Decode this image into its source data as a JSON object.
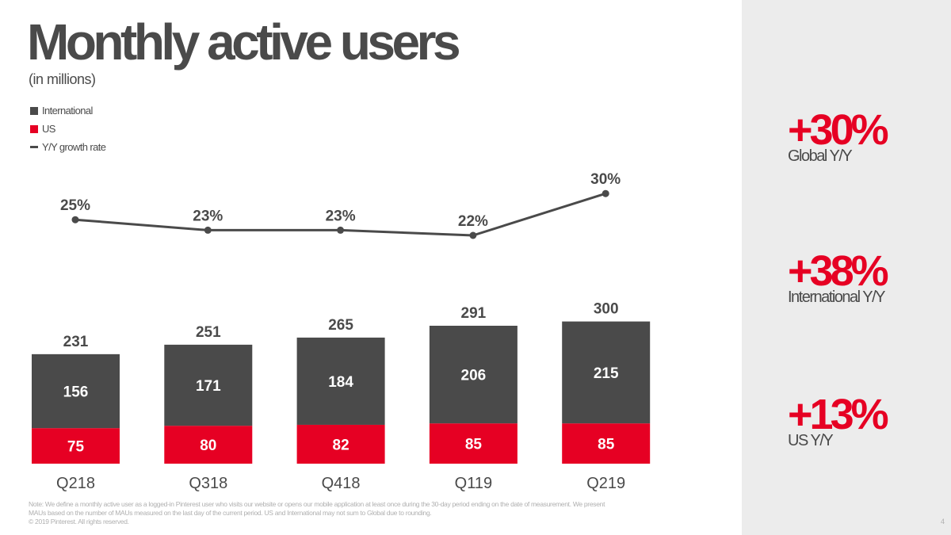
{
  "header": {
    "title": "Monthly active users",
    "subtitle": "(in millions)"
  },
  "legend": [
    {
      "label": "International",
      "color": "#4a4a4a",
      "kind": "square"
    },
    {
      "label": "US",
      "color": "#e60023",
      "kind": "square"
    },
    {
      "label": "Y/Y growth rate",
      "color": "#4a4a4a",
      "kind": "line"
    }
  ],
  "colors": {
    "international": "#4a4a4a",
    "us": "#e60023",
    "growth_line": "#4a4a4a",
    "accent_red": "#e60023",
    "side_panel": "#ececec"
  },
  "chart_data": {
    "type": "bar",
    "stacked": true,
    "categories": [
      "Q218",
      "Q318",
      "Q418",
      "Q119",
      "Q219"
    ],
    "series": [
      {
        "name": "US",
        "values": [
          75,
          80,
          82,
          85,
          85
        ]
      },
      {
        "name": "International",
        "values": [
          156,
          171,
          184,
          206,
          215
        ]
      }
    ],
    "totals": [
      231,
      251,
      265,
      291,
      300
    ],
    "overlay_line": {
      "name": "Y/Y growth rate",
      "values": [
        25,
        23,
        23,
        22,
        30
      ],
      "labels": [
        "25%",
        "23%",
        "23%",
        "22%",
        "30%"
      ]
    },
    "title": "Monthly active users",
    "subtitle": "(in millions)",
    "legend_position": "top-left",
    "grid": false
  },
  "side_stats": [
    {
      "value": "+30%",
      "label": "Global Y/Y"
    },
    {
      "value": "+38%",
      "label": "International Y/Y"
    },
    {
      "value": "+13%",
      "label": "US Y/Y"
    }
  ],
  "footer": {
    "note_lines": [
      "Note: We define a monthly active user as a logged-in Pinterest user who visits our website or opens our mobile application at least once during the 30-day period ending on the date of measurement. We present",
      "MAUs based on the number of MAUs measured on the last day of the current period. US and International may not sum to Global due to rounding.",
      "© 2019 Pinterest. All rights reserved."
    ],
    "page_number": "4"
  }
}
